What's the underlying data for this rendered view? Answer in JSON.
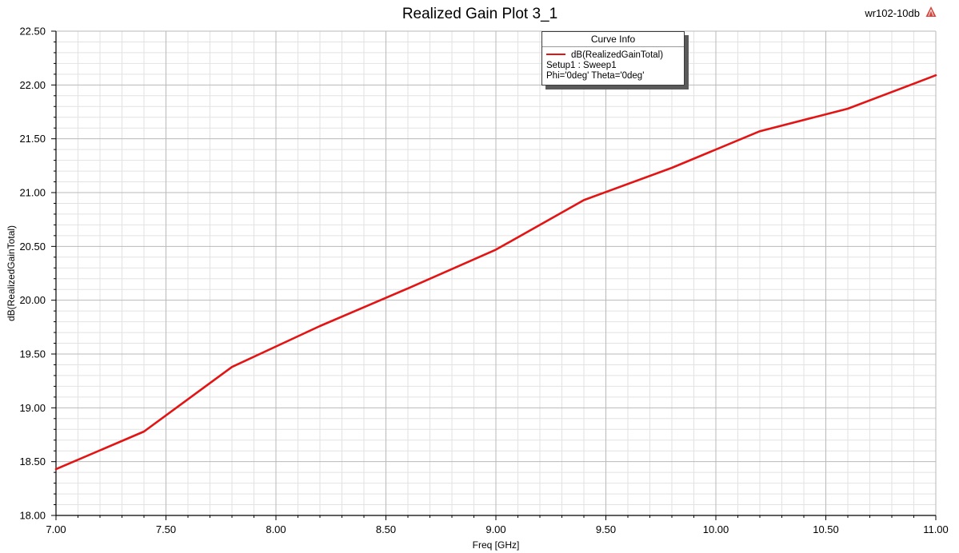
{
  "header": {
    "project_name": "wr102-10db",
    "logo_icon": "ansys-logo-icon"
  },
  "legend": {
    "title": "Curve Info",
    "setup": "Setup1 : Sweep1",
    "variables": "Phi='0deg' Theta='0deg'"
  },
  "colors": {
    "background": "#ffffff",
    "trace": "#e31414",
    "grid_major": "#b9b9b9",
    "grid_minor": "#e2e2e2",
    "axis": "#000000",
    "logo": "#d9473f"
  },
  "chart_data": {
    "type": "line",
    "title": "Realized Gain Plot 3_1",
    "xlabel": "Freq [GHz]",
    "ylabel": "dB(RealizedGainTotal)",
    "xlim": [
      7.0,
      11.0
    ],
    "ylim": [
      18.0,
      22.5
    ],
    "xticks": [
      "7.00",
      "7.50",
      "8.00",
      "8.50",
      "9.00",
      "9.50",
      "10.00",
      "10.50",
      "11.00"
    ],
    "yticks": [
      "18.00",
      "18.50",
      "19.00",
      "19.50",
      "20.00",
      "20.50",
      "21.00",
      "21.50",
      "22.00",
      "22.50"
    ],
    "grid": true,
    "legend_position": "top-center",
    "series": [
      {
        "name": "dB(RealizedGainTotal)",
        "x": [
          7.0,
          7.4,
          7.8,
          8.2,
          8.6,
          9.0,
          9.4,
          9.8,
          10.2,
          10.6,
          11.0
        ],
        "y": [
          18.43,
          18.78,
          19.38,
          19.76,
          20.11,
          20.47,
          20.93,
          21.23,
          21.57,
          21.78,
          22.09
        ]
      }
    ]
  }
}
